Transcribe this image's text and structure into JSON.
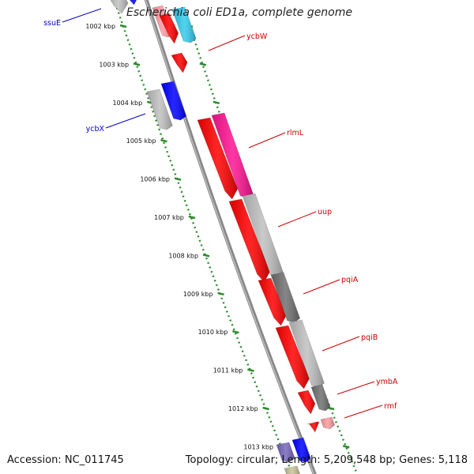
{
  "title": "Escherichia coli ED1a, complete genome",
  "footer": {
    "accession_label": "Accession:",
    "accession": "NC_011745",
    "topology_label": "Topology:",
    "topology": "circular",
    "length_label": "Length:",
    "length": "5,209,548 bp",
    "genes_label": "Genes:",
    "genes": "5,118"
  },
  "colors": {
    "backbone": "#888888",
    "tick_green": "#2e8b2e",
    "label_red": "#cc0000",
    "label_blue": "#0000cc",
    "gene_red": "#ff0000",
    "gene_gray": "#c0c0c0",
    "gene_darkgray": "#707070",
    "gene_magenta": "#ff1493",
    "gene_blue": "#0000ff",
    "gene_cyan": "#33ccee",
    "gene_pink": "#ff9aa2"
  },
  "tick_labels": [
    "1002 kbp",
    "1003 kbp",
    "1004 kbp",
    "1005 kbp",
    "1006 kbp",
    "1007 kbp",
    "1008 kbp",
    "1009 kbp",
    "1010 kbp",
    "1011 kbp",
    "1012 kbp",
    "1013 kbp"
  ],
  "gene_labels": [
    {
      "name": "ssuE",
      "strand": "minus"
    },
    {
      "name": "ycbW",
      "strand": "plus"
    },
    {
      "name": "ycbX",
      "strand": "minus"
    },
    {
      "name": "rlmL",
      "strand": "plus"
    },
    {
      "name": "uup",
      "strand": "plus"
    },
    {
      "name": "pqiA",
      "strand": "plus"
    },
    {
      "name": "pqiB",
      "strand": "plus"
    },
    {
      "name": "ymbA",
      "strand": "plus"
    },
    {
      "name": "rmf",
      "strand": "plus"
    }
  ]
}
